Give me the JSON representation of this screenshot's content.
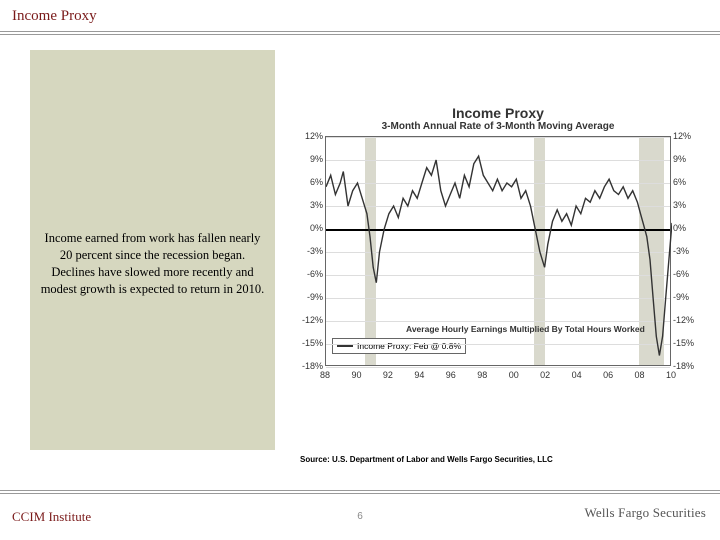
{
  "header": {
    "title": "Income Proxy"
  },
  "sidebar": {
    "text": "Income earned from work has fallen nearly 20 percent since the recession began.  Declines have slowed more recently and modest growth is expected to return in 2010."
  },
  "chart": {
    "type": "line",
    "title": "Income Proxy",
    "subtitle": "3-Month Annual Rate of 3-Month Moving Average",
    "footnote": "Average Hourly Earnings Multiplied By Total Hours Worked",
    "legend": "Income Proxy: Feb @ 0.8%",
    "xlim": [
      1988,
      2010
    ],
    "ylim": [
      -18,
      12
    ],
    "ytick_step": 3,
    "yticks": [
      "12%",
      "9%",
      "6%",
      "3%",
      "0%",
      "-3%",
      "-6%",
      "-9%",
      "-12%",
      "-15%",
      "-18%"
    ],
    "xticks": [
      "88",
      "90",
      "92",
      "94",
      "96",
      "98",
      "00",
      "02",
      "04",
      "06",
      "08",
      "10"
    ],
    "line_color": "#333333",
    "grid_color": "#dddddd",
    "background_color": "#ffffff",
    "recession_color": "#c9c9b8",
    "recessions": [
      {
        "start": 1990.5,
        "end": 1991.2
      },
      {
        "start": 2001.2,
        "end": 2001.9
      },
      {
        "start": 2007.9,
        "end": 2009.5
      }
    ],
    "series": [
      {
        "x": 1988.0,
        "y": 5.5
      },
      {
        "x": 1988.3,
        "y": 7.0
      },
      {
        "x": 1988.6,
        "y": 4.5
      },
      {
        "x": 1988.9,
        "y": 6.0
      },
      {
        "x": 1989.1,
        "y": 7.5
      },
      {
        "x": 1989.4,
        "y": 3.0
      },
      {
        "x": 1989.7,
        "y": 5.0
      },
      {
        "x": 1990.0,
        "y": 6.0
      },
      {
        "x": 1990.3,
        "y": 4.0
      },
      {
        "x": 1990.6,
        "y": 2.0
      },
      {
        "x": 1990.8,
        "y": -1.0
      },
      {
        "x": 1991.0,
        "y": -5.0
      },
      {
        "x": 1991.2,
        "y": -7.0
      },
      {
        "x": 1991.4,
        "y": -3.0
      },
      {
        "x": 1991.7,
        "y": 0.0
      },
      {
        "x": 1992.0,
        "y": 2.0
      },
      {
        "x": 1992.3,
        "y": 3.0
      },
      {
        "x": 1992.6,
        "y": 1.5
      },
      {
        "x": 1992.9,
        "y": 4.0
      },
      {
        "x": 1993.2,
        "y": 3.0
      },
      {
        "x": 1993.5,
        "y": 5.0
      },
      {
        "x": 1993.8,
        "y": 4.0
      },
      {
        "x": 1994.1,
        "y": 6.0
      },
      {
        "x": 1994.4,
        "y": 8.0
      },
      {
        "x": 1994.7,
        "y": 7.0
      },
      {
        "x": 1995.0,
        "y": 9.0
      },
      {
        "x": 1995.3,
        "y": 5.0
      },
      {
        "x": 1995.6,
        "y": 3.0
      },
      {
        "x": 1995.9,
        "y": 4.5
      },
      {
        "x": 1996.2,
        "y": 6.0
      },
      {
        "x": 1996.5,
        "y": 4.0
      },
      {
        "x": 1996.8,
        "y": 7.0
      },
      {
        "x": 1997.1,
        "y": 5.5
      },
      {
        "x": 1997.4,
        "y": 8.5
      },
      {
        "x": 1997.7,
        "y": 9.5
      },
      {
        "x": 1998.0,
        "y": 7.0
      },
      {
        "x": 1998.3,
        "y": 6.0
      },
      {
        "x": 1998.6,
        "y": 5.0
      },
      {
        "x": 1998.9,
        "y": 6.5
      },
      {
        "x": 1999.2,
        "y": 5.0
      },
      {
        "x": 1999.5,
        "y": 6.0
      },
      {
        "x": 1999.8,
        "y": 5.5
      },
      {
        "x": 2000.1,
        "y": 6.5
      },
      {
        "x": 2000.4,
        "y": 4.0
      },
      {
        "x": 2000.7,
        "y": 5.0
      },
      {
        "x": 2001.0,
        "y": 3.0
      },
      {
        "x": 2001.3,
        "y": 0.0
      },
      {
        "x": 2001.6,
        "y": -3.0
      },
      {
        "x": 2001.9,
        "y": -5.0
      },
      {
        "x": 2002.1,
        "y": -2.0
      },
      {
        "x": 2002.4,
        "y": 1.0
      },
      {
        "x": 2002.7,
        "y": 2.5
      },
      {
        "x": 2003.0,
        "y": 1.0
      },
      {
        "x": 2003.3,
        "y": 2.0
      },
      {
        "x": 2003.6,
        "y": 0.5
      },
      {
        "x": 2003.9,
        "y": 3.0
      },
      {
        "x": 2004.2,
        "y": 2.0
      },
      {
        "x": 2004.5,
        "y": 4.0
      },
      {
        "x": 2004.8,
        "y": 3.5
      },
      {
        "x": 2005.1,
        "y": 5.0
      },
      {
        "x": 2005.4,
        "y": 4.0
      },
      {
        "x": 2005.7,
        "y": 5.5
      },
      {
        "x": 2006.0,
        "y": 6.5
      },
      {
        "x": 2006.3,
        "y": 5.0
      },
      {
        "x": 2006.6,
        "y": 4.5
      },
      {
        "x": 2006.9,
        "y": 5.5
      },
      {
        "x": 2007.2,
        "y": 4.0
      },
      {
        "x": 2007.5,
        "y": 5.0
      },
      {
        "x": 2007.8,
        "y": 3.5
      },
      {
        "x": 2008.0,
        "y": 2.0
      },
      {
        "x": 2008.2,
        "y": 0.5
      },
      {
        "x": 2008.4,
        "y": -1.0
      },
      {
        "x": 2008.6,
        "y": -4.0
      },
      {
        "x": 2008.8,
        "y": -9.0
      },
      {
        "x": 2009.0,
        "y": -14.0
      },
      {
        "x": 2009.2,
        "y": -16.5
      },
      {
        "x": 2009.4,
        "y": -14.0
      },
      {
        "x": 2009.6,
        "y": -9.0
      },
      {
        "x": 2009.8,
        "y": -4.0
      },
      {
        "x": 2010.0,
        "y": 0.8
      }
    ]
  },
  "source": "Source: U.S. Department of Labor and Wells Fargo Securities, LLC",
  "footer": {
    "left": "CCIM Institute",
    "page": "6",
    "logo": "Wells Fargo Securities"
  }
}
